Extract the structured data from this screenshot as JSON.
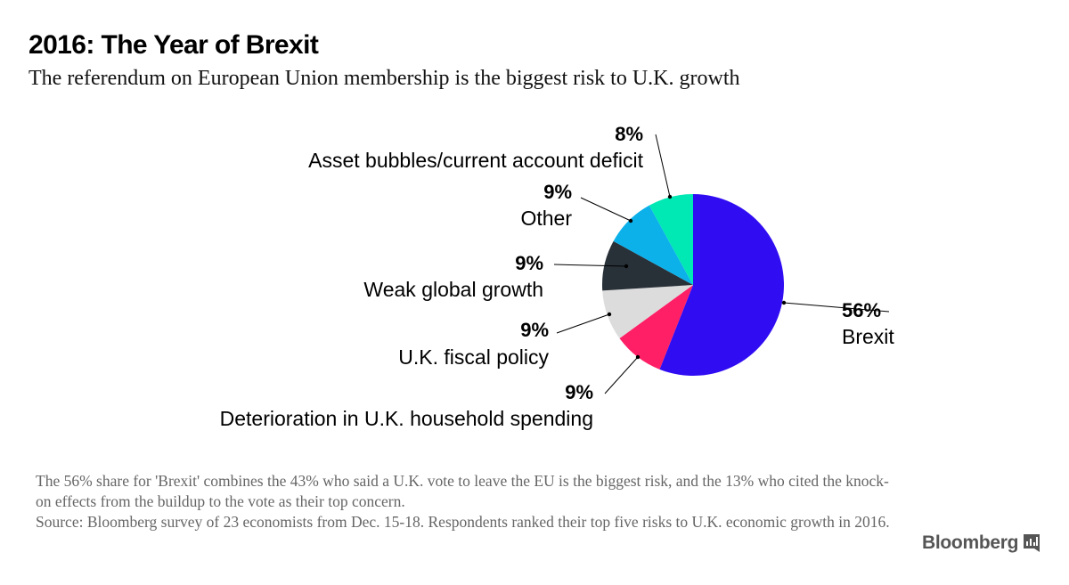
{
  "header": {
    "title": "2016: The Year of Brexit",
    "subtitle": "The referendum on European Union membership is the biggest risk to U.K. growth"
  },
  "chart_data": {
    "type": "pie",
    "start_angle_deg": 0,
    "direction": "clockwise",
    "slices": [
      {
        "name": "Brexit",
        "value": 56,
        "label": "56%",
        "color": "#2f0cf2"
      },
      {
        "name": "Deterioration in U.K. household spending",
        "value": 9,
        "label": "9%",
        "color": "#ff1f66"
      },
      {
        "name": "U.K. fiscal policy",
        "value": 9,
        "label": "9%",
        "color": "#dcdcdc"
      },
      {
        "name": "Weak global growth",
        "value": 9,
        "label": "9%",
        "color": "#283038"
      },
      {
        "name": "Other",
        "value": 9,
        "label": "9%",
        "color": "#0cb1ea"
      },
      {
        "name": "Asset bubbles/current account deficit",
        "value": 8,
        "label": "8%",
        "color": "#00e8b4"
      }
    ]
  },
  "footer": {
    "note": "The 56% share for 'Brexit' combines the 43% who said a U.K. vote to leave the EU is the biggest risk, and the 13% who cited the knock-on effects from the buildup to the vote as their top concern.",
    "source": "Source: Bloomberg survey of 23 economists from Dec. 15-18. Respondents ranked their top five risks to U.K. economic growth in 2016.",
    "brand": "Bloomberg",
    "brand_icon": "bar-chart-icon"
  }
}
